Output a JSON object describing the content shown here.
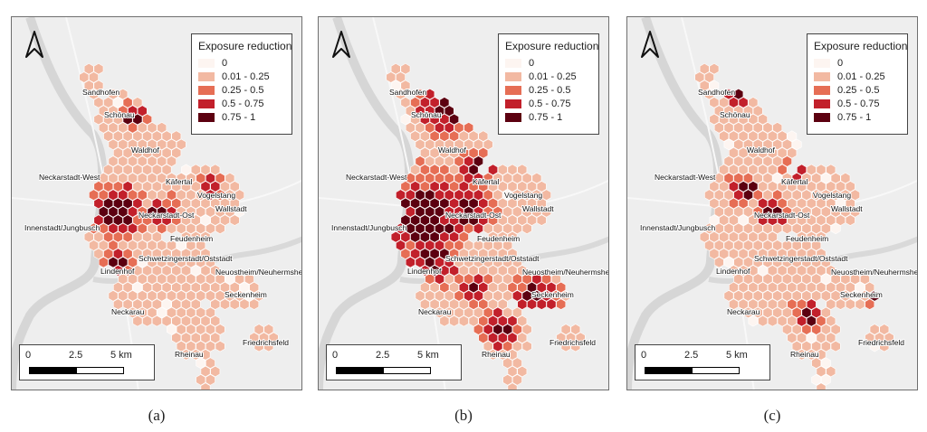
{
  "colors": {
    "c0": "#fdf5f1",
    "c1": "#f2b9a2",
    "c2": "#e66e55",
    "c3": "#c2202b",
    "c4": "#5c0010"
  },
  "legend": {
    "title": "Exposure reduction",
    "items": [
      {
        "label": "0",
        "color_key": "c0"
      },
      {
        "label": "0.01 - 0.25",
        "color_key": "c1"
      },
      {
        "label": "0.25 - 0.5",
        "color_key": "c2"
      },
      {
        "label": "0.5 - 0.75",
        "color_key": "c3"
      },
      {
        "label": "0.75 - 1",
        "color_key": "c4"
      }
    ]
  },
  "scale_bar": {
    "labels": [
      "0",
      "2.5",
      "5 km"
    ]
  },
  "places": [
    "Sandhofen",
    "Schönau",
    "Waldhof",
    "Neckarstadt-West",
    "Käfertal",
    "Vogelstang",
    "Wallstadt",
    "Neckarstadt-Ost",
    "Innenstadt/Jungbusch",
    "Feudenheim",
    "Schwetzingerstadt/Oststadt",
    "Lindenhof",
    "Neuostheim/Neuhermsheim",
    "Seckenheim",
    "Neckarau",
    "Friedrichsfeld",
    "Rheinau"
  ],
  "panels": [
    {
      "caption": "(a)"
    },
    {
      "caption": "(b)"
    },
    {
      "caption": "(c)"
    }
  ]
}
